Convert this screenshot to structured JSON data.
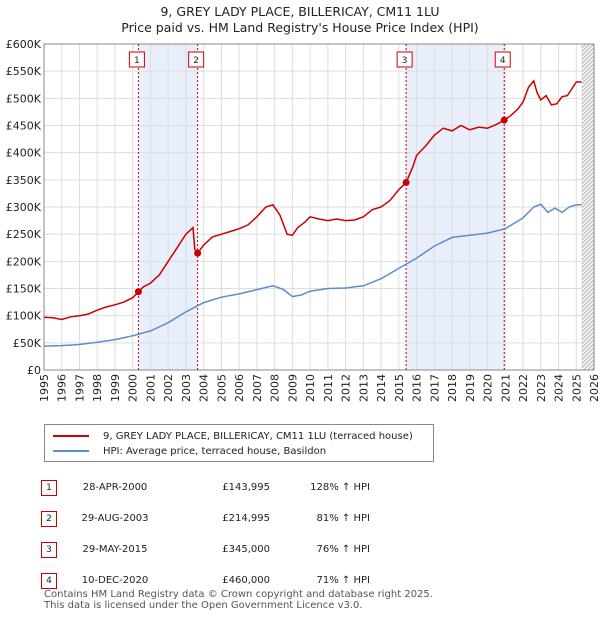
{
  "title": "9, GREY LADY PLACE, BILLERICAY, CM11 1LU",
  "subtitle": "Price paid vs. HM Land Registry's House Price Index (HPI)",
  "colors": {
    "property": "#cc0000",
    "hpi": "#5b8fc9",
    "shade": "#e8eefa",
    "grid": "#dddddd"
  },
  "legend": {
    "property_label": "9, GREY LADY PLACE, BILLERICAY, CM11 1LU (terraced house)",
    "hpi_label": "HPI: Average price, terraced house, Basildon"
  },
  "sales": [
    {
      "num": "1",
      "date": "28-APR-2000",
      "price": "£143,995",
      "hpi_change": "128% ↑ HPI"
    },
    {
      "num": "2",
      "date": "29-AUG-2003",
      "price": "£214,995",
      "hpi_change": "81% ↑ HPI"
    },
    {
      "num": "3",
      "date": "29-MAY-2015",
      "price": "£345,000",
      "hpi_change": "76% ↑ HPI"
    },
    {
      "num": "4",
      "date": "10-DEC-2020",
      "price": "£460,000",
      "hpi_change": "71% ↑ HPI"
    }
  ],
  "footer": {
    "line1": "Contains HM Land Registry data © Crown copyright and database right 2025.",
    "line2": "This data is licensed under the Open Government Licence v3.0."
  },
  "chart_data": {
    "type": "line",
    "xlabel": "",
    "ylabel": "",
    "xlim": [
      1995,
      2026
    ],
    "ylim": [
      0,
      600000
    ],
    "y_ticks": [
      0,
      50000,
      100000,
      150000,
      200000,
      250000,
      300000,
      350000,
      400000,
      450000,
      500000,
      550000,
      600000
    ],
    "y_tick_labels": [
      "£0",
      "£50K",
      "£100K",
      "£150K",
      "£200K",
      "£250K",
      "£300K",
      "£350K",
      "£400K",
      "£450K",
      "£500K",
      "£550K",
      "£600K"
    ],
    "x_ticks": [
      1995,
      1996,
      1997,
      1998,
      1999,
      2000,
      2001,
      2002,
      2003,
      2004,
      2005,
      2006,
      2007,
      2008,
      2009,
      2010,
      2011,
      2012,
      2013,
      2014,
      2015,
      2016,
      2017,
      2018,
      2019,
      2020,
      2021,
      2022,
      2023,
      2024,
      2025,
      2026
    ],
    "shaded_ranges": [
      [
        2000.32,
        2003.66
      ],
      [
        2015.41,
        2020.94
      ]
    ],
    "future_hatch_from": 2025.3,
    "series": [
      {
        "name": "9, GREY LADY PLACE, BILLERICAY, CM11 1LU (terraced house)",
        "x": [
          1995,
          1995.5,
          1996,
          1996.5,
          1997,
          1997.5,
          1998,
          1998.5,
          1999,
          1999.5,
          2000,
          2000.32,
          2000.6,
          2001,
          2001.5,
          2002,
          2002.5,
          2003,
          2003.4,
          2003.5,
          2003.66,
          2004,
          2004.5,
          2005,
          2005.5,
          2006,
          2006.5,
          2007,
          2007.5,
          2007.9,
          2008.3,
          2008.7,
          2009,
          2009.3,
          2009.7,
          2010,
          2010.5,
          2011,
          2011.5,
          2012,
          2012.5,
          2013,
          2013.5,
          2014,
          2014.5,
          2015,
          2015.41,
          2015.8,
          2016,
          2016.5,
          2017,
          2017.5,
          2018,
          2018.5,
          2019,
          2019.5,
          2020,
          2020.5,
          2020.94,
          2021.3,
          2021.7,
          2022,
          2022.3,
          2022.6,
          2022.8,
          2023,
          2023.3,
          2023.6,
          2023.9,
          2024.2,
          2024.5,
          2024.8,
          2025,
          2025.3
        ],
        "y": [
          97000,
          96000,
          93000,
          98000,
          100000,
          103000,
          110000,
          116000,
          120000,
          125000,
          133000,
          143995,
          153000,
          160000,
          175000,
          200000,
          225000,
          250000,
          262000,
          222000,
          214995,
          230000,
          245000,
          250000,
          255000,
          260000,
          267000,
          282000,
          300000,
          304000,
          285000,
          250000,
          248000,
          262000,
          272000,
          282000,
          278000,
          275000,
          278000,
          275000,
          276000,
          282000,
          295000,
          300000,
          312000,
          332000,
          345000,
          375000,
          395000,
          412000,
          432000,
          445000,
          440000,
          450000,
          442000,
          447000,
          445000,
          452000,
          460000,
          468000,
          480000,
          493000,
          520000,
          532000,
          510000,
          497000,
          505000,
          488000,
          490000,
          503000,
          505000,
          520000,
          530000,
          530000
        ]
      },
      {
        "name": "HPI: Average price, terraced house, Basildon",
        "x": [
          1995,
          1996,
          1997,
          1998,
          1999,
          2000,
          2001,
          2002,
          2003,
          2004,
          2005,
          2006,
          2007,
          2007.9,
          2008.5,
          2009,
          2009.5,
          2010,
          2011,
          2012,
          2013,
          2014,
          2015,
          2016,
          2017,
          2018,
          2019,
          2020,
          2021,
          2022,
          2022.6,
          2023,
          2023.4,
          2023.8,
          2024.2,
          2024.6,
          2025,
          2025.3
        ],
        "y": [
          44000,
          45000,
          47000,
          51000,
          56000,
          63000,
          72000,
          87000,
          107000,
          124000,
          134000,
          140000,
          148000,
          155000,
          148000,
          135000,
          138000,
          145000,
          150000,
          151000,
          155000,
          168000,
          187000,
          206000,
          228000,
          244000,
          248000,
          252000,
          260000,
          280000,
          300000,
          305000,
          290000,
          298000,
          290000,
          300000,
          304000,
          304000
        ]
      }
    ],
    "annotations": [
      {
        "label": "1",
        "x": 2000.32,
        "y": 143995
      },
      {
        "label": "2",
        "x": 2003.66,
        "y": 214995
      },
      {
        "label": "3",
        "x": 2015.41,
        "y": 345000
      },
      {
        "label": "4",
        "x": 2020.94,
        "y": 460000
      }
    ]
  }
}
